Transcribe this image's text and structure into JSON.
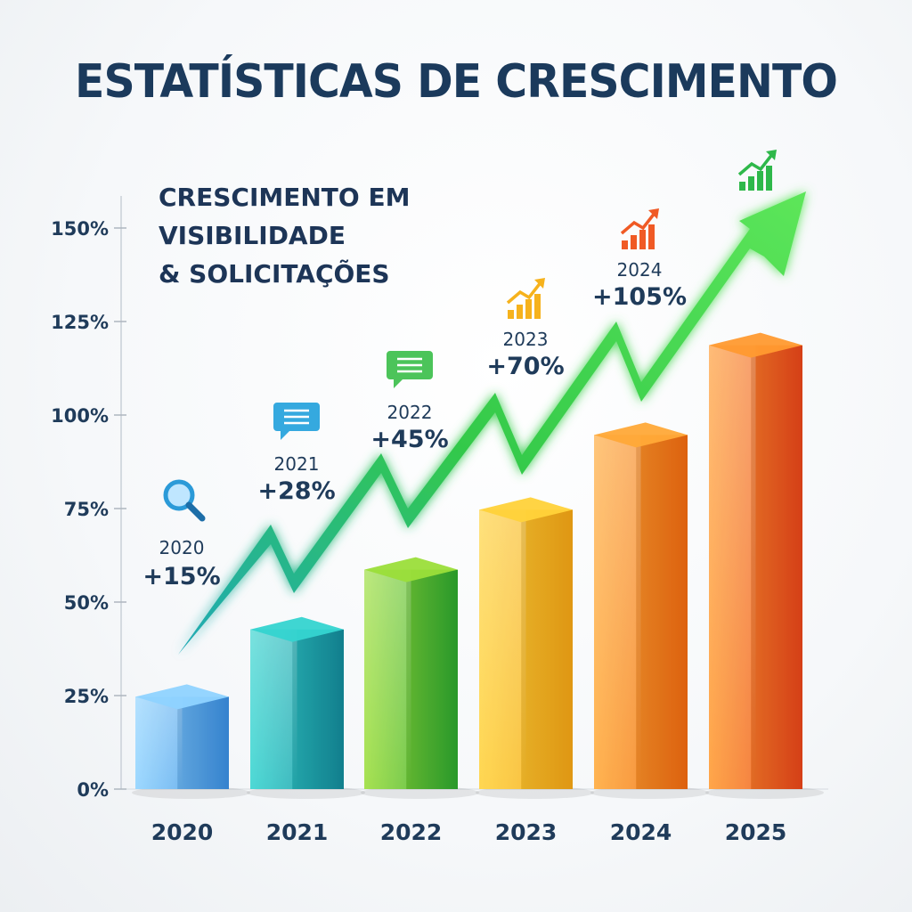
{
  "title": "ESTATÍSTICAS DE CRESCIMENTO",
  "subtitle_lines": [
    "CRESCIMENTO EM",
    "VISIBILIDADE",
    "& SOLICITAÇÕES"
  ],
  "chart_data": {
    "type": "bar",
    "title": "ESTATÍSTICAS DE CRESCIMENTO",
    "categories": [
      "2020",
      "2021",
      "2022",
      "2023",
      "2024",
      "2025"
    ],
    "values": [
      28,
      46,
      62,
      78,
      98,
      122
    ],
    "y_ticks": [
      "0%",
      "25%",
      "50%",
      "75%",
      "100%",
      "125%",
      "150%"
    ],
    "ylim": [
      0,
      150
    ],
    "grid": false,
    "annotations": [
      {
        "year": "2020",
        "growth": "+15%",
        "icon": "magnifier-icon"
      },
      {
        "year": "2021",
        "growth": "+28%",
        "icon": "chat-bubble-icon"
      },
      {
        "year": "2022",
        "growth": "+45%",
        "icon": "chat-bubble-icon"
      },
      {
        "year": "2023",
        "growth": "+70%",
        "icon": "bar-chart-icon"
      },
      {
        "year": "2024",
        "growth": "+105%",
        "icon": "bar-chart-icon"
      },
      {
        "year": "2025",
        "growth": "",
        "icon": "bar-chart-icon"
      }
    ],
    "bar_colors": [
      [
        "#8fd3ff",
        "#3a8ee0"
      ],
      [
        "#35d4d0",
        "#138a9a"
      ],
      [
        "#9bde3a",
        "#2da62e"
      ],
      [
        "#ffd23a",
        "#f3a415"
      ],
      [
        "#ffa938",
        "#f06a10"
      ],
      [
        "#ff9a30",
        "#e8451a"
      ]
    ],
    "trend_arrow_colors": [
      "#1fa9b8",
      "#33c94a",
      "#5de65a"
    ]
  }
}
